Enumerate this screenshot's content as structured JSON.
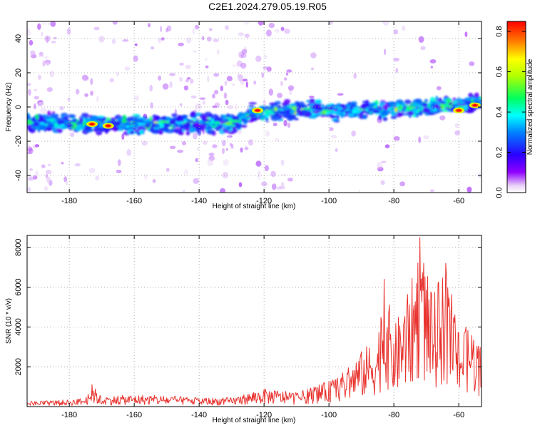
{
  "title": "C2E1.2024.279.05.19.R05",
  "chart_data": [
    {
      "type": "heatmap",
      "xlabel": "Height of straight line (km)",
      "ylabel": "Frequency (Hz)",
      "xlim": [
        -193,
        -53
      ],
      "ylim": [
        -50,
        50
      ],
      "xticks": [
        -180,
        -160,
        -140,
        -120,
        -100,
        -80,
        -60
      ],
      "yticks": [
        -40,
        -20,
        0,
        20,
        40
      ],
      "grid": true,
      "colorbar": {
        "label": "Normalized spectral amplitude",
        "range": [
          0.0,
          0.85
        ],
        "ticks": [
          0.0,
          0.2,
          0.4,
          0.6,
          0.8
        ]
      },
      "ridge": [
        {
          "x": -193,
          "y": -9
        },
        {
          "x": -170,
          "y": -10
        },
        {
          "x": -150,
          "y": -10
        },
        {
          "x": -130,
          "y": -9
        },
        {
          "x": -126,
          "y": -7
        },
        {
          "x": -124,
          "y": -3
        },
        {
          "x": -110,
          "y": -2
        },
        {
          "x": -90,
          "y": -2
        },
        {
          "x": -70,
          "y": 0
        },
        {
          "x": -53,
          "y": 2
        }
      ],
      "hotspots": [
        {
          "x": -173,
          "y": -10,
          "v": 0.85
        },
        {
          "x": -168,
          "y": -11,
          "v": 0.85
        },
        {
          "x": -122,
          "y": -2,
          "v": 0.85
        },
        {
          "x": -60,
          "y": -2,
          "v": 0.85
        },
        {
          "x": -55,
          "y": 1,
          "v": 0.85
        }
      ]
    },
    {
      "type": "line",
      "xlabel": "Height of straight line (km)",
      "ylabel": "SNR (10 * v/v)",
      "xlim": [
        -193,
        -53
      ],
      "ylim": [
        0,
        8600
      ],
      "xticks": [
        -180,
        -160,
        -140,
        -120,
        -100,
        -80,
        -60
      ],
      "yticks": [
        2000,
        4000,
        6000,
        8000
      ],
      "color": "#e8322d",
      "envelope": [
        {
          "x": -193,
          "y": 250
        },
        {
          "x": -180,
          "y": 350
        },
        {
          "x": -175,
          "y": 450
        },
        {
          "x": -173,
          "y": 1100
        },
        {
          "x": -170,
          "y": 500
        },
        {
          "x": -160,
          "y": 600
        },
        {
          "x": -150,
          "y": 550
        },
        {
          "x": -140,
          "y": 450
        },
        {
          "x": -130,
          "y": 450
        },
        {
          "x": -120,
          "y": 900
        },
        {
          "x": -110,
          "y": 700
        },
        {
          "x": -100,
          "y": 1300
        },
        {
          "x": -95,
          "y": 1800
        },
        {
          "x": -90,
          "y": 2800
        },
        {
          "x": -85,
          "y": 3600
        },
        {
          "x": -83,
          "y": 6400
        },
        {
          "x": -80,
          "y": 4000
        },
        {
          "x": -75,
          "y": 6000
        },
        {
          "x": -72,
          "y": 8500
        },
        {
          "x": -68,
          "y": 5500
        },
        {
          "x": -64,
          "y": 7200
        },
        {
          "x": -60,
          "y": 3800
        },
        {
          "x": -56,
          "y": 4200
        },
        {
          "x": -53,
          "y": 2800
        }
      ],
      "peaks": [
        {
          "x": -173,
          "y": 1100
        },
        {
          "x": -83,
          "y": 6400
        },
        {
          "x": -72,
          "y": 8500
        },
        {
          "x": -64,
          "y": 7200
        }
      ]
    }
  ]
}
